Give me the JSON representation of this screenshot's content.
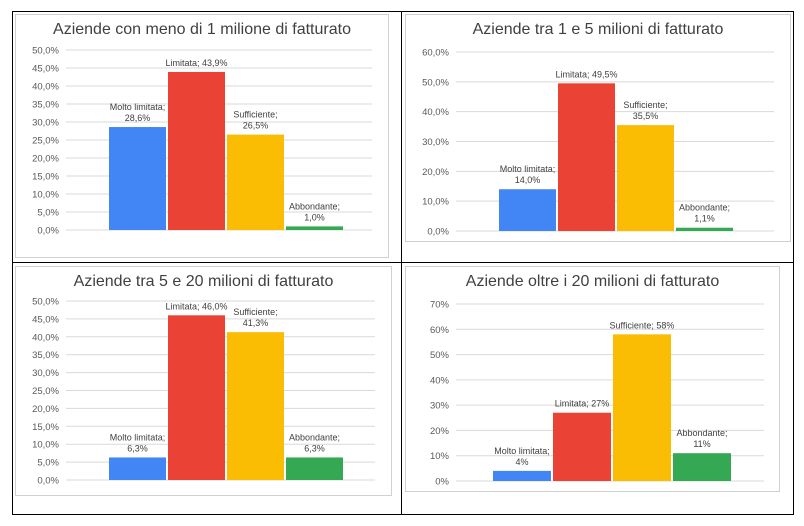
{
  "chart_data": [
    {
      "type": "bar",
      "title": "Aziende con meno di 1 milione di fatturato",
      "categories": [
        "Molto limitata",
        "Limitata",
        "Sufficiente",
        "Abbondante"
      ],
      "values": [
        28.6,
        43.9,
        26.5,
        1.0
      ],
      "data_labels": [
        [
          "Molto limitata;",
          "28,6%"
        ],
        [
          "Limitata; 43,9%"
        ],
        [
          "Sufficiente;",
          "26,5%"
        ],
        [
          "Abbondante;",
          "1,0%"
        ]
      ],
      "ylim": [
        0,
        50
      ],
      "ytick_values": [
        0,
        5,
        10,
        15,
        20,
        25,
        30,
        35,
        40,
        45,
        50
      ],
      "ytick_labels": [
        "0,0%",
        "5,0%",
        "10,0%",
        "15,0%",
        "20,0%",
        "25,0%",
        "30,0%",
        "35,0%",
        "40,0%",
        "45,0%",
        "50,0%"
      ],
      "colors": [
        "#4285F4",
        "#EA4335",
        "#FBBC04",
        "#34A853"
      ],
      "grid": true,
      "legend": "none"
    },
    {
      "type": "bar",
      "title": "Aziende  tra  1  e  5  milioni  di  fatturato",
      "categories": [
        "Molto limitata",
        "Limitata",
        "Sufficiente",
        "Abbondante"
      ],
      "values": [
        14.0,
        49.5,
        35.5,
        1.1
      ],
      "data_labels": [
        [
          "Molto limitata;",
          "14,0%"
        ],
        [
          "Limitata; 49,5%"
        ],
        [
          "Sufficiente;",
          "35,5%"
        ],
        [
          "Abbondante;",
          "1,1%"
        ]
      ],
      "ylim": [
        0,
        60
      ],
      "ytick_values": [
        0,
        10,
        20,
        30,
        40,
        50,
        60
      ],
      "ytick_labels": [
        "0,0%",
        "10,0%",
        "20,0%",
        "30,0%",
        "40,0%",
        "50,0%",
        "60,0%"
      ],
      "colors": [
        "#4285F4",
        "#EA4335",
        "#FBBC04",
        "#34A853"
      ],
      "grid": true,
      "legend": "none"
    },
    {
      "type": "bar",
      "title": "Aziende  tra  5  e  20  milioni  di  fatturato",
      "categories": [
        "Molto limitata",
        "Limitata",
        "Sufficiente",
        "Abbondante"
      ],
      "values": [
        6.3,
        46.0,
        41.3,
        6.3
      ],
      "data_labels": [
        [
          "Molto limitata;",
          "6,3%"
        ],
        [
          "Limitata; 46,0%"
        ],
        [
          "Sufficiente;",
          "41,3%"
        ],
        [
          "Abbondante;",
          "6,3%"
        ]
      ],
      "ylim": [
        0,
        50
      ],
      "ytick_values": [
        0,
        5,
        10,
        15,
        20,
        25,
        30,
        35,
        40,
        45,
        50
      ],
      "ytick_labels": [
        "0,0%",
        "5,0%",
        "10,0%",
        "15,0%",
        "20,0%",
        "25,0%",
        "30,0%",
        "35,0%",
        "40,0%",
        "45,0%",
        "50,0%"
      ],
      "colors": [
        "#4285F4",
        "#EA4335",
        "#FBBC04",
        "#34A853"
      ],
      "grid": true,
      "legend": "none"
    },
    {
      "type": "bar",
      "title": "Aziende  oltre  i  20  milioni  di  fatturato",
      "categories": [
        "Molto limitata",
        "Limitata",
        "Sufficiente",
        "Abbondante"
      ],
      "values": [
        4,
        27,
        58,
        11
      ],
      "data_labels": [
        [
          "Molto limitata;",
          "4%"
        ],
        [
          "Limitata; 27%"
        ],
        [
          "Sufficiente; 58%"
        ],
        [
          "Abbondante;",
          "11%"
        ]
      ],
      "ylim": [
        0,
        70
      ],
      "ytick_values": [
        0,
        10,
        20,
        30,
        40,
        50,
        60,
        70
      ],
      "ytick_labels": [
        "0%",
        "10%",
        "20%",
        "30%",
        "40%",
        "50%",
        "60%",
        "70%"
      ],
      "colors": [
        "#4285F4",
        "#EA4335",
        "#FBBC04",
        "#34A853"
      ],
      "grid": true,
      "legend": "none"
    }
  ]
}
